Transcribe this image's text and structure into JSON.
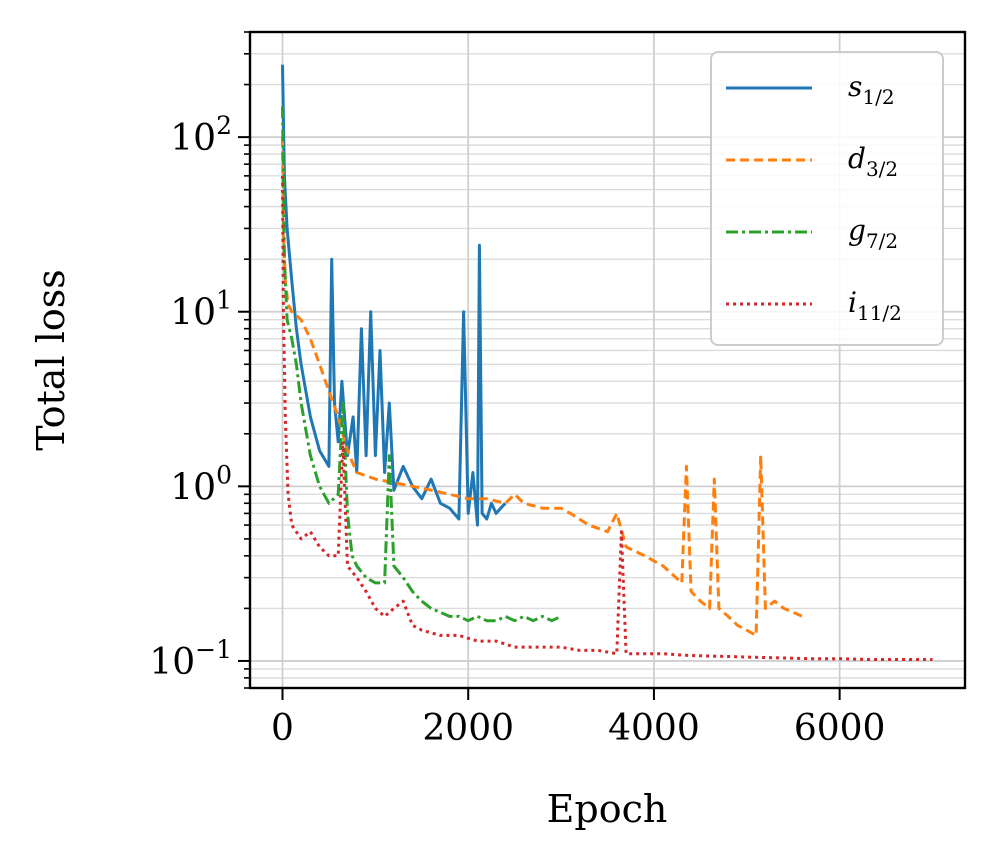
{
  "chart_data": {
    "type": "line",
    "title": "",
    "xlabel": "Epoch",
    "ylabel": "Total loss",
    "xlim": [
      -350,
      7350
    ],
    "ylim": [
      0.07,
      400
    ],
    "yscale": "log",
    "grid": true,
    "legend_position": "top-right",
    "x_ticks": [
      {
        "value": 0,
        "label": "0"
      },
      {
        "value": 2000,
        "label": "2000"
      },
      {
        "value": 4000,
        "label": "4000"
      },
      {
        "value": 6000,
        "label": "6000"
      }
    ],
    "y_ticks": [
      {
        "value": 0.1,
        "base": "10",
        "exp": "−1"
      },
      {
        "value": 1,
        "base": "10",
        "exp": "0"
      },
      {
        "value": 10,
        "base": "10",
        "exp": "1"
      },
      {
        "value": 100,
        "base": "10",
        "exp": "2"
      }
    ],
    "series": [
      {
        "name": "s1/2",
        "label_main": "s",
        "label_sub": "1/2",
        "color": "#1f77b4",
        "dash": "solid",
        "x": [
          0,
          20,
          50,
          100,
          150,
          200,
          300,
          400,
          500,
          530,
          560,
          600,
          640,
          700,
          760,
          800,
          850,
          900,
          950,
          1000,
          1050,
          1100,
          1150,
          1200,
          1300,
          1400,
          1500,
          1600,
          1700,
          1800,
          1900,
          1950,
          2000,
          2050,
          2100,
          2120,
          2150,
          2200,
          2250,
          2300,
          2350,
          2400
        ],
        "y": [
          260,
          60,
          30,
          15,
          8,
          5,
          2.5,
          1.6,
          1.3,
          20,
          3,
          1.8,
          4,
          1.5,
          2.5,
          1.2,
          8,
          1.5,
          10,
          1.5,
          6,
          1.2,
          3,
          0.95,
          1.3,
          1,
          0.85,
          1.1,
          0.8,
          0.75,
          0.65,
          10,
          0.7,
          1.2,
          0.6,
          24,
          0.7,
          0.65,
          0.8,
          0.7,
          0.75,
          0.8
        ]
      },
      {
        "name": "d3/2",
        "label_main": "d",
        "label_sub": "3/2",
        "color": "#ff7f0e",
        "dash": "dashed",
        "x": [
          0,
          10,
          30,
          60,
          100,
          200,
          300,
          400,
          500,
          600,
          700,
          800,
          1000,
          1200,
          1400,
          1600,
          1800,
          2000,
          2200,
          2400,
          2500,
          2600,
          2800,
          3000,
          3100,
          3300,
          3500,
          3600,
          3700,
          3900,
          4100,
          4300,
          4350,
          4400,
          4500,
          4600,
          4650,
          4700,
          4800,
          4900,
          5000,
          5100,
          5150,
          5200,
          5300,
          5400,
          5500,
          5600
        ],
        "y": [
          100,
          30,
          15,
          11,
          10,
          9,
          7,
          5,
          3.5,
          2.5,
          1.6,
          1.2,
          1.1,
          1.05,
          1,
          0.95,
          0.9,
          0.85,
          0.85,
          0.8,
          0.9,
          0.8,
          0.75,
          0.75,
          0.7,
          0.6,
          0.55,
          0.7,
          0.45,
          0.4,
          0.35,
          0.28,
          1.3,
          0.25,
          0.22,
          0.2,
          1.1,
          0.2,
          0.18,
          0.16,
          0.15,
          0.14,
          1.5,
          0.2,
          0.22,
          0.2,
          0.19,
          0.18
        ]
      },
      {
        "name": "g7/2",
        "label_main": "g",
        "label_sub": "7/2",
        "color": "#2ca02c",
        "dash": "dashdot",
        "x": [
          0,
          20,
          50,
          100,
          150,
          200,
          300,
          400,
          500,
          600,
          650,
          700,
          750,
          800,
          900,
          1000,
          1100,
          1150,
          1200,
          1300,
          1400,
          1500,
          1600,
          1700,
          1800,
          1900,
          2000,
          2100,
          2200,
          2300,
          2400,
          2500,
          2600,
          2700,
          2800,
          2900,
          3000
        ],
        "y": [
          150,
          20,
          9,
          7,
          5,
          3,
          1.5,
          1,
          0.8,
          0.9,
          3,
          0.7,
          0.4,
          0.35,
          0.3,
          0.28,
          0.28,
          1.5,
          0.35,
          0.3,
          0.25,
          0.22,
          0.2,
          0.19,
          0.18,
          0.18,
          0.17,
          0.18,
          0.17,
          0.17,
          0.18,
          0.17,
          0.18,
          0.17,
          0.18,
          0.17,
          0.18
        ]
      },
      {
        "name": "i11/2",
        "label_main": "i",
        "label_sub": "11/2",
        "color": "#d62728",
        "dash": "dotted",
        "x": [
          0,
          10,
          30,
          60,
          100,
          200,
          300,
          400,
          500,
          600,
          650,
          700,
          800,
          900,
          1000,
          1100,
          1200,
          1300,
          1400,
          1500,
          1700,
          1900,
          2100,
          2300,
          2500,
          2700,
          3000,
          3200,
          3400,
          3600,
          3650,
          3700,
          3900,
          4100,
          4300,
          4500,
          4800,
          5100,
          5400,
          5700,
          6000,
          6300,
          6600,
          6800,
          7000
        ],
        "y": [
          60,
          10,
          2.5,
          0.9,
          0.6,
          0.5,
          0.55,
          0.45,
          0.4,
          0.4,
          1.8,
          0.35,
          0.3,
          0.25,
          0.2,
          0.18,
          0.2,
          0.22,
          0.16,
          0.15,
          0.14,
          0.14,
          0.13,
          0.13,
          0.12,
          0.12,
          0.12,
          0.115,
          0.115,
          0.11,
          0.55,
          0.11,
          0.11,
          0.11,
          0.108,
          0.107,
          0.106,
          0.105,
          0.104,
          0.103,
          0.103,
          0.102,
          0.102,
          0.102,
          0.102
        ]
      }
    ]
  }
}
